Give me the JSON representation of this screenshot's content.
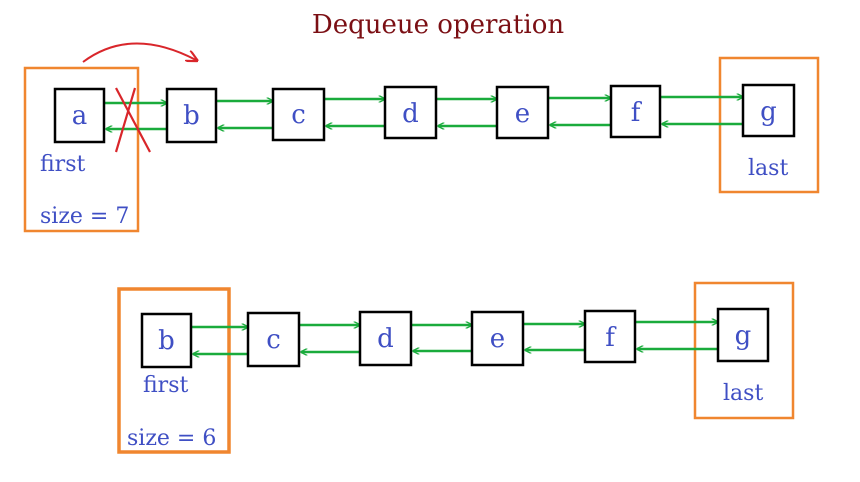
{
  "title": "Dequeue operation",
  "colors": {
    "title": "#7b0f14",
    "label": "#3f4fc4",
    "node_border": "#000000",
    "frame": "#f0862f",
    "link": "#1aab3c",
    "removal_mark": "#d9262b"
  },
  "before": {
    "nodes": [
      "a",
      "b",
      "c",
      "d",
      "e",
      "f",
      "g"
    ],
    "first_label": "first",
    "last_label": "last",
    "size_label": "size = 7"
  },
  "after": {
    "nodes": [
      "b",
      "c",
      "d",
      "e",
      "f",
      "g"
    ],
    "first_label": "first",
    "last_label": "last",
    "size_label": "size = 6"
  }
}
